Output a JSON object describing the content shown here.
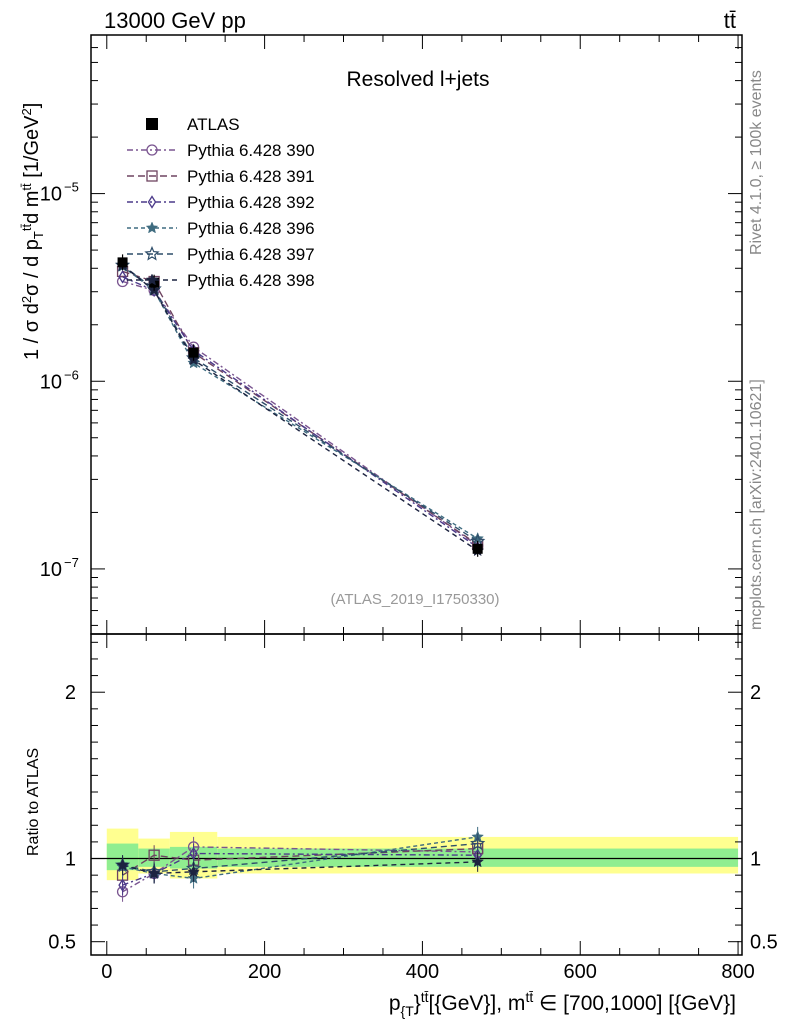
{
  "header": {
    "left": "13000 GeV pp",
    "right": "tt̄"
  },
  "side_labels": {
    "rivet": "Rivet 4.1.0, ≥ 100k events",
    "mcplots": "mcplots.cern.ch [arXiv:2401.10621]"
  },
  "chart_data": [
    {
      "type": "line",
      "title": "Resolved l+jets",
      "watermark": "(ATLAS_2019_I1750330)",
      "ylabel": "1 / σ d²σ / d p_{T}^{tt̄} d m^{tt̄} [1/GeV²]",
      "yscale": "log",
      "ylim": [
        4.5e-08,
        7e-05
      ],
      "xlim": [
        -20,
        805
      ],
      "y_ticks": [
        {
          "value": 1e-07,
          "base": "10",
          "exp": "−7"
        },
        {
          "value": 1e-06,
          "base": "10",
          "exp": "−6"
        },
        {
          "value": 1e-05,
          "base": "10",
          "exp": "−5"
        }
      ],
      "legend_position": "top-left",
      "x": [
        20,
        60,
        110,
        470
      ],
      "data": {
        "name": "ATLAS",
        "values": [
          4.3e-06,
          3.35e-06,
          1.42e-06,
          1.28e-07
        ],
        "color": "#000000"
      },
      "series": [
        {
          "name": "Pythia 6.428 390",
          "marker": "circle",
          "dash": "6,3,2,3",
          "color": "#7a5590",
          "values": [
            3.4e-06,
            3.05e-06,
            1.52e-06,
            1.33e-07
          ]
        },
        {
          "name": "Pythia 6.428 391",
          "marker": "square",
          "dash": "7,4",
          "color": "#6e4461",
          "values": [
            3.85e-06,
            3.4e-06,
            1.42e-06,
            1.35e-07
          ]
        },
        {
          "name": "Pythia 6.428 392",
          "marker": "diamond",
          "dash": "6,3,2,3",
          "color": "#4c3a8a",
          "values": [
            3.6e-06,
            3.05e-06,
            1.46e-06,
            1.3e-07
          ]
        },
        {
          "name": "Pythia 6.428 396",
          "marker": "star-filled",
          "dash": "4,3",
          "color": "#3f6c80",
          "values": [
            4.1e-06,
            3.05e-06,
            1.25e-06,
            1.45e-07
          ]
        },
        {
          "name": "Pythia 6.428 397",
          "marker": "star-open",
          "dash": "6,4",
          "color": "#2f4e6a",
          "values": [
            4.15e-06,
            3.1e-06,
            1.33e-06,
            1.4e-07
          ]
        },
        {
          "name": "Pythia 6.428 398",
          "marker": "star-filled",
          "dash": "5,4",
          "color": "#1c2340",
          "values": [
            4.15e-06,
            3.05e-06,
            1.3e-06,
            1.25e-07
          ]
        }
      ]
    },
    {
      "type": "line",
      "ylabel": "Ratio to ATLAS",
      "xlabel": "p_{T}^{tt̄} [{GeV}], m^{tt̄} ∈ [700,1000] [{GeV}]",
      "ylim": [
        0.42,
        2.35
      ],
      "xlim": [
        -20,
        805
      ],
      "x_ticks": [
        0,
        200,
        400,
        600,
        800
      ],
      "y_ticks": [
        0.5,
        1,
        2
      ],
      "bands": {
        "edges": [
          0,
          40,
          80,
          140,
          800
        ],
        "inner_low": [
          0.93,
          0.95,
          0.94,
          0.95,
          0.95
        ],
        "inner_high": [
          1.09,
          1.06,
          1.07,
          1.06,
          1.06
        ],
        "outer_low": [
          0.87,
          0.91,
          0.88,
          0.91,
          0.91
        ],
        "outer_high": [
          1.18,
          1.12,
          1.16,
          1.13,
          1.13
        ],
        "inner_color": "#90ee90",
        "outer_color": "#ffff90"
      },
      "x": [
        20,
        60,
        110,
        470
      ],
      "series": [
        {
          "name": "Pythia 6.428 390",
          "values": [
            0.8,
            0.91,
            1.07,
            1.04
          ]
        },
        {
          "name": "Pythia 6.428 391",
          "values": [
            0.9,
            1.02,
            0.99,
            1.06
          ]
        },
        {
          "name": "Pythia 6.428 392",
          "values": [
            0.84,
            0.91,
            1.03,
            1.02
          ]
        },
        {
          "name": "Pythia 6.428 396",
          "values": [
            0.95,
            0.91,
            0.88,
            1.13
          ]
        },
        {
          "name": "Pythia 6.428 397",
          "values": [
            0.96,
            0.92,
            0.94,
            1.09
          ]
        },
        {
          "name": "Pythia 6.428 398",
          "values": [
            0.96,
            0.91,
            0.92,
            0.98
          ]
        }
      ]
    }
  ]
}
